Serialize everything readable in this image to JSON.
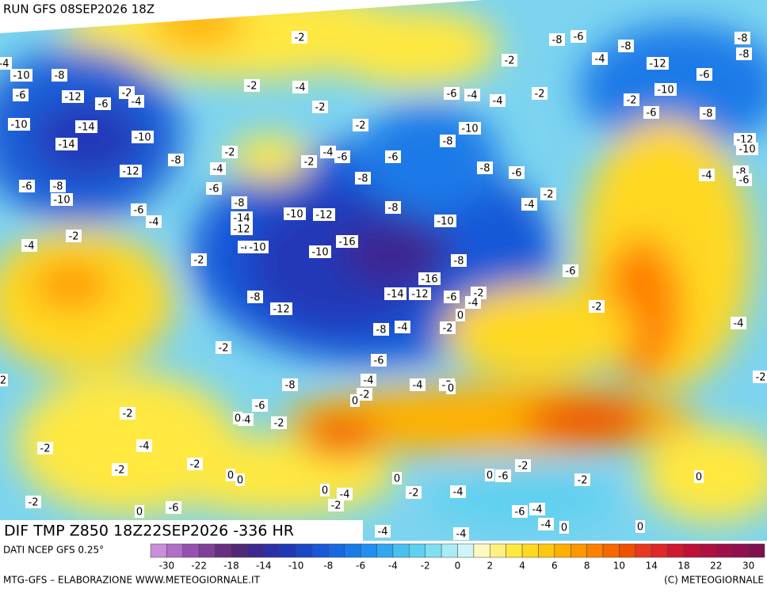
{
  "header": {
    "run": "RUN GFS 08SEP2026 18Z"
  },
  "map": {
    "title": "DIF TMP Z850 18Z22SEP2026 -336 HR",
    "labels": [
      "-2",
      "-8",
      "-6",
      "-8",
      "-8",
      "-8",
      "-10",
      "-8",
      "-2",
      "-4",
      "-12",
      "-6",
      "-4",
      "-2",
      "-12",
      "-6",
      "-2",
      "-6",
      "-4",
      "-6",
      "-4",
      "-4",
      "-2",
      "-10",
      "-2",
      "-2",
      "-10",
      "-14",
      "-2",
      "-10",
      "-8",
      "-6",
      "-14",
      "-10",
      "-8",
      "-2",
      "-4",
      "-6",
      "-2",
      "-6",
      "-8",
      "-4",
      "-12",
      "-8",
      "-6",
      "-8",
      "-4",
      "-6",
      "-8",
      "-6",
      "-2",
      "-10",
      "-8",
      "-8",
      "-6",
      "-4",
      "-10",
      "-12",
      "-4",
      "-14",
      "-12",
      "-10",
      "-2",
      "-4",
      "-16",
      "-4",
      "-10",
      "-10",
      "-2",
      "-8",
      "-6",
      "-16",
      "-14",
      "-12",
      "-6",
      "-2",
      "-8",
      "-12",
      "-2",
      "-4",
      "-4",
      "-4",
      "-8",
      "-2",
      "-2",
      "-6",
      "-4",
      "-8",
      "-4",
      "-2",
      "-2",
      "-6",
      "-2",
      "-4",
      "-2",
      "-4",
      "-2",
      "-2",
      "-2",
      "-2",
      "-6",
      "-2",
      "-2",
      "-2",
      "-4",
      "-4",
      "-2",
      "-6",
      "-6",
      "-4",
      "-4",
      "-4",
      "-4",
      "0",
      "0",
      "0",
      "0",
      "0",
      "0",
      "0",
      "0",
      "0",
      "0",
      "0",
      "0",
      "0",
      "-12",
      "-10",
      "-8",
      "-6",
      "-4",
      "2",
      "-2"
    ]
  },
  "footer": {
    "source": "DATI NCEP GFS 0.25°",
    "credit": "MTG-GFS – ELABORAZIONE WWW.METEOGIORNALE.IT",
    "copyright": "(C) METEOGIORNALE"
  },
  "colorbar": {
    "colors": [
      "#c890d8",
      "#b070c8",
      "#9850b0",
      "#804098",
      "#683080",
      "#502878",
      "#3c2890",
      "#2c30a8",
      "#2038b8",
      "#1848c8",
      "#1858d8",
      "#1868e0",
      "#1a7ae8",
      "#2090f0",
      "#30a8f0",
      "#48c0f0",
      "#60d0f0",
      "#80e0f0",
      "#a8ecf4",
      "#d0f4f8",
      "#fff8c0",
      "#fff080",
      "#ffe840",
      "#ffd820",
      "#ffc810",
      "#ffb000",
      "#ff9800",
      "#ff8000",
      "#f86800",
      "#f05000",
      "#e83820",
      "#e02828",
      "#d01830",
      "#c01038",
      "#b01040",
      "#a01048",
      "#901050",
      "#801050"
    ],
    "labels": [
      -30,
      -22,
      -18,
      -14,
      -10,
      -8,
      -6,
      -4,
      -2,
      0,
      2,
      4,
      6,
      8,
      10,
      14,
      18,
      22,
      30
    ]
  }
}
